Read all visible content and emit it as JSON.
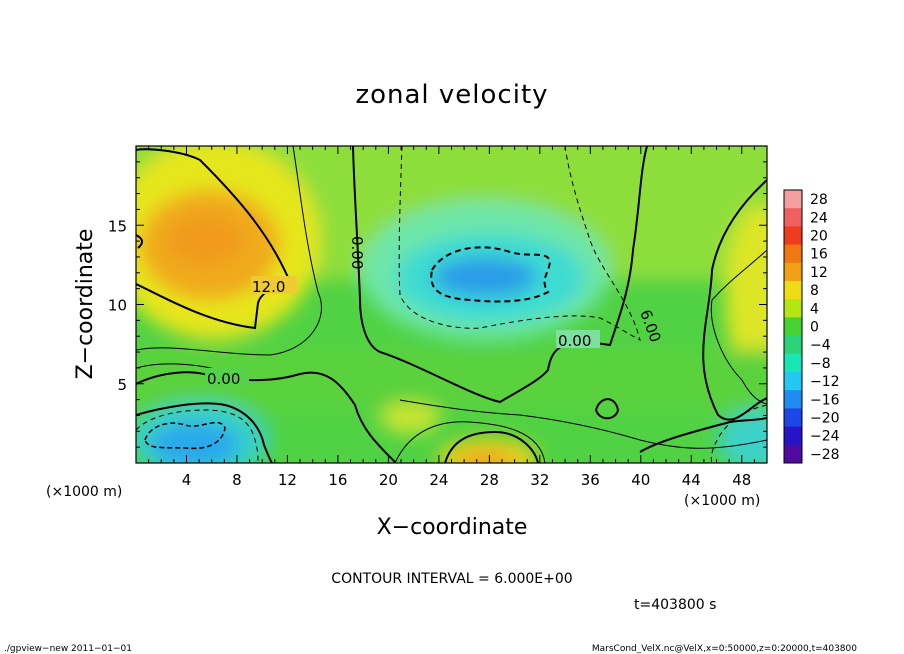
{
  "window": {
    "title": "zonal velocity"
  },
  "chart_data": {
    "type": "heatmap",
    "title": "zonal velocity",
    "xlabel": "X−coordinate",
    "ylabel": "Z−coordinate",
    "x_unit_label": "(×1000 m)",
    "y_unit_label": "(×1000 m)",
    "xlim": [
      0,
      50
    ],
    "ylim": [
      0,
      20
    ],
    "x_ticks": [
      4,
      8,
      12,
      16,
      20,
      24,
      28,
      32,
      36,
      40,
      44,
      48
    ],
    "y_ticks": [
      5,
      10,
      15
    ],
    "colorbar": {
      "labels": [
        "28",
        "24",
        "20",
        "16",
        "12",
        "8",
        "4",
        "0",
        "−4",
        "−8",
        "−12",
        "−16",
        "−20",
        "−24",
        "−28"
      ],
      "values": [
        28,
        24,
        20,
        16,
        12,
        8,
        4,
        0,
        -4,
        -8,
        -12,
        -16,
        -20,
        -24,
        -28
      ],
      "colors": [
        "#f4a0a0",
        "#f06060",
        "#f03c1e",
        "#f07814",
        "#f0a014",
        "#f0dc14",
        "#b4e614",
        "#46d232",
        "#2dd278",
        "#19e6b4",
        "#23c8f0",
        "#1e8cf0",
        "#1e46e6",
        "#2814c8",
        "#500aa0"
      ]
    },
    "contour_interval_text": "CONTOUR INTERVAL = 6.000E+00",
    "contour_labels": [
      "12.0",
      "0.00",
      "0.00",
      "0.00",
      "6.00"
    ],
    "features": [
      {
        "kind": "max",
        "x": 6,
        "z": 13,
        "value": 17
      },
      {
        "kind": "max",
        "x": 2,
        "z": 15,
        "value": 12
      },
      {
        "kind": "max",
        "x": 28,
        "z": 0,
        "value": 14
      },
      {
        "kind": "min",
        "x": 27,
        "z": 11.5,
        "value": -16
      },
      {
        "kind": "min",
        "x": 6,
        "z": 2,
        "value": -15
      },
      {
        "kind": "min",
        "x": 49,
        "z": 2,
        "value": -9
      }
    ],
    "time_text": "t=403800 s"
  },
  "footer": {
    "left": "./gpview−new   2011−01−01",
    "right": "MarsCond_VelX.nc@VelX,x=0:50000,z=0:20000,t=403800"
  }
}
